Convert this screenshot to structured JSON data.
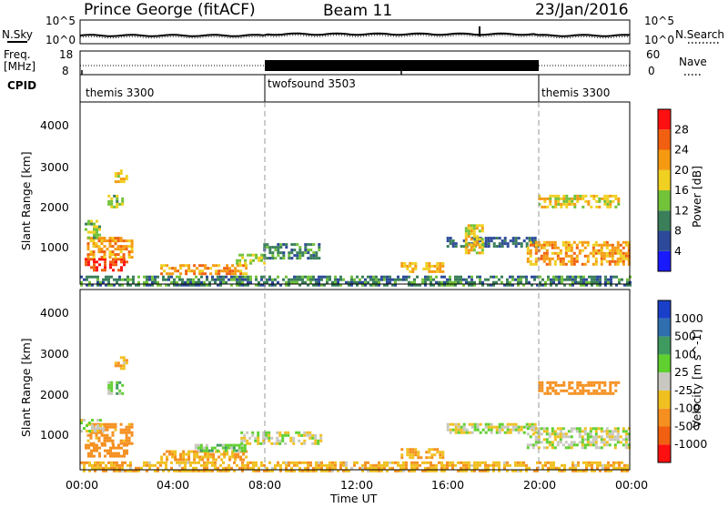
{
  "header": {
    "station": "Prince George (fitACF)",
    "beam": "Beam 11",
    "date": "23/Jan/2016"
  },
  "panel_labels": {
    "nsky": "N.Sky",
    "nsearch": "N.Search",
    "freq_a": "Freq.",
    "freq_b": "[MHz]",
    "nave": "Nave",
    "cpid": "CPID"
  },
  "small_axes": {
    "noise_left_ticks": [
      "10^5",
      "10^0"
    ],
    "noise_right_ticks": [
      "10^5",
      "10^0"
    ],
    "freq_left_ticks": [
      "18",
      "8"
    ],
    "nave_right_ticks": [
      "60",
      "0"
    ]
  },
  "cpid_segments": [
    {
      "label": "themis 3300",
      "start_h": 0,
      "end_h": 8
    },
    {
      "label": "twofsound 3503",
      "start_h": 8,
      "end_h": 20
    },
    {
      "label": "themis 3300",
      "start_h": 20,
      "end_h": 24
    }
  ],
  "axes": {
    "x_label": "Time UT",
    "x_ticks": [
      "00:00",
      "04:00",
      "08:00",
      "12:00",
      "16:00",
      "20:00",
      "00:00"
    ],
    "y_label": "Slant Range [km]",
    "y_ticks": [
      "1000",
      "2000",
      "3000",
      "4000"
    ]
  },
  "colorbars": {
    "power": {
      "title": "Power [dB]",
      "labels": [
        "4",
        "8",
        "12",
        "16",
        "20",
        "24",
        "28"
      ],
      "colors": [
        "#1a1aff",
        "#2d4a9a",
        "#3a7f5a",
        "#72c23a",
        "#f0d020",
        "#f59a10",
        "#f06010",
        "#ff1010"
      ]
    },
    "velocity": {
      "title": "Velocity [m s^-1]",
      "labels": [
        "1000",
        "500",
        "100",
        "25",
        "-25",
        "-100",
        "-500",
        "-1000"
      ],
      "colors": [
        "#1a3fc8",
        "#2f6fb0",
        "#3f9a5f",
        "#5fd030",
        "#c8c8c0",
        "#f0c020",
        "#f59020",
        "#f06010",
        "#ff1010"
      ]
    }
  },
  "chart_data": [
    {
      "type": "heatmap",
      "title": "Power [dB]",
      "x_range_hours": [
        0,
        24
      ],
      "y_range_km": [
        180,
        4500
      ],
      "ylabel": "Slant Range [km]",
      "xlabel": "Time UT",
      "color_scale": [
        0,
        30
      ],
      "patches": [
        {
          "t0": 0.2,
          "t1": 2.0,
          "r0": 500,
          "r1": 800,
          "value": 28
        },
        {
          "t0": 0.3,
          "t1": 2.3,
          "r0": 800,
          "r1": 1300,
          "value": 22
        },
        {
          "t0": 0.2,
          "t1": 0.8,
          "r0": 1300,
          "r1": 1700,
          "value": 14
        },
        {
          "t0": 1.2,
          "t1": 1.9,
          "r0": 2000,
          "r1": 2300,
          "value": 14
        },
        {
          "t0": 1.5,
          "t1": 2.0,
          "r0": 2600,
          "r1": 2900,
          "value": 18
        },
        {
          "t0": 3.5,
          "t1": 7.2,
          "r0": 400,
          "r1": 650,
          "value": 22
        },
        {
          "t0": 6.8,
          "t1": 8.0,
          "r0": 700,
          "r1": 900,
          "value": 16
        },
        {
          "t0": 8.0,
          "t1": 10.5,
          "r0": 800,
          "r1": 1150,
          "value": 10
        },
        {
          "t0": 14.0,
          "t1": 15.8,
          "r0": 450,
          "r1": 700,
          "value": 20
        },
        {
          "t0": 16.0,
          "t1": 20.0,
          "r0": 1050,
          "r1": 1300,
          "value": 8
        },
        {
          "t0": 16.8,
          "t1": 17.6,
          "r0": 900,
          "r1": 1600,
          "value": 18
        },
        {
          "t0": 19.5,
          "t1": 24.0,
          "r0": 650,
          "r1": 1200,
          "value": 22
        },
        {
          "t0": 20.0,
          "t1": 23.5,
          "r0": 2000,
          "r1": 2300,
          "value": 18
        },
        {
          "t0": 0.0,
          "t1": 24.0,
          "r0": 180,
          "r1": 380,
          "value": 10
        }
      ]
    },
    {
      "type": "heatmap",
      "title": "Velocity [m s^-1]",
      "x_range_hours": [
        0,
        24
      ],
      "y_range_km": [
        180,
        4500
      ],
      "ylabel": "Slant Range [km]",
      "xlabel": "Time UT",
      "color_scale": [
        -1000,
        1000
      ],
      "patches": [
        {
          "t0": 0.2,
          "t1": 2.0,
          "r0": 500,
          "r1": 800,
          "value": -200
        },
        {
          "t0": 0.3,
          "t1": 2.3,
          "r0": 800,
          "r1": 1300,
          "value": -150
        },
        {
          "t0": 0.0,
          "t1": 1.0,
          "r0": 1100,
          "r1": 1400,
          "value": 0
        },
        {
          "t0": 1.2,
          "t1": 1.9,
          "r0": 2000,
          "r1": 2300,
          "value": 60
        },
        {
          "t0": 1.5,
          "t1": 2.0,
          "r0": 2600,
          "r1": 2900,
          "value": -60
        },
        {
          "t0": 3.5,
          "t1": 7.2,
          "r0": 400,
          "r1": 650,
          "value": -100
        },
        {
          "t0": 5.0,
          "t1": 7.2,
          "r0": 650,
          "r1": 800,
          "value": 60
        },
        {
          "t0": 7.0,
          "t1": 10.5,
          "r0": 800,
          "r1": 1100,
          "value": 0
        },
        {
          "t0": 14.0,
          "t1": 15.8,
          "r0": 450,
          "r1": 700,
          "value": -100
        },
        {
          "t0": 16.0,
          "t1": 20.0,
          "r0": 1050,
          "r1": 1300,
          "value": 0
        },
        {
          "t0": 19.5,
          "t1": 24.0,
          "r0": 700,
          "r1": 1200,
          "value": 0
        },
        {
          "t0": 20.0,
          "t1": 23.5,
          "r0": 2000,
          "r1": 2300,
          "value": -400
        },
        {
          "t0": 0.0,
          "t1": 24.0,
          "r0": 180,
          "r1": 380,
          "value": -80
        }
      ]
    }
  ]
}
